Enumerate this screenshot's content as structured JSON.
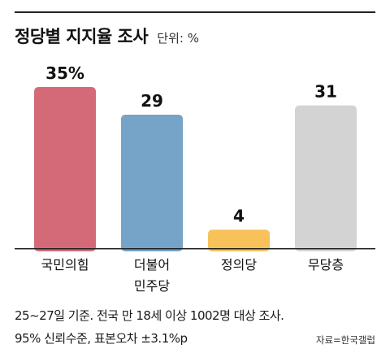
{
  "header": {
    "title": "정당별 지지율 조사",
    "unit": "단위: %"
  },
  "chart_data": {
    "type": "bar",
    "title": "정당별 지지율 조사",
    "unit_label": "단위: %",
    "categories": [
      [
        "국민의힘"
      ],
      [
        "더불어",
        "민주당"
      ],
      [
        "정의당"
      ],
      [
        "무당층"
      ]
    ],
    "values": [
      35,
      29,
      4,
      31
    ],
    "value_labels": [
      "35%",
      "29",
      "4",
      "31"
    ],
    "colors": [
      "#d46a78",
      "#76a3c8",
      "#f7c25a",
      "#d3d3d3"
    ],
    "ylim": [
      0,
      35
    ],
    "grid": false,
    "legend": "none"
  },
  "footnote": {
    "line1": "25~27일 기준. 전국 만 18세 이상 1002명 대상 조사.",
    "line2": "95% 신뢰수준, 표본오차 ±3.1%p",
    "source": "자료=한국갤럽"
  }
}
